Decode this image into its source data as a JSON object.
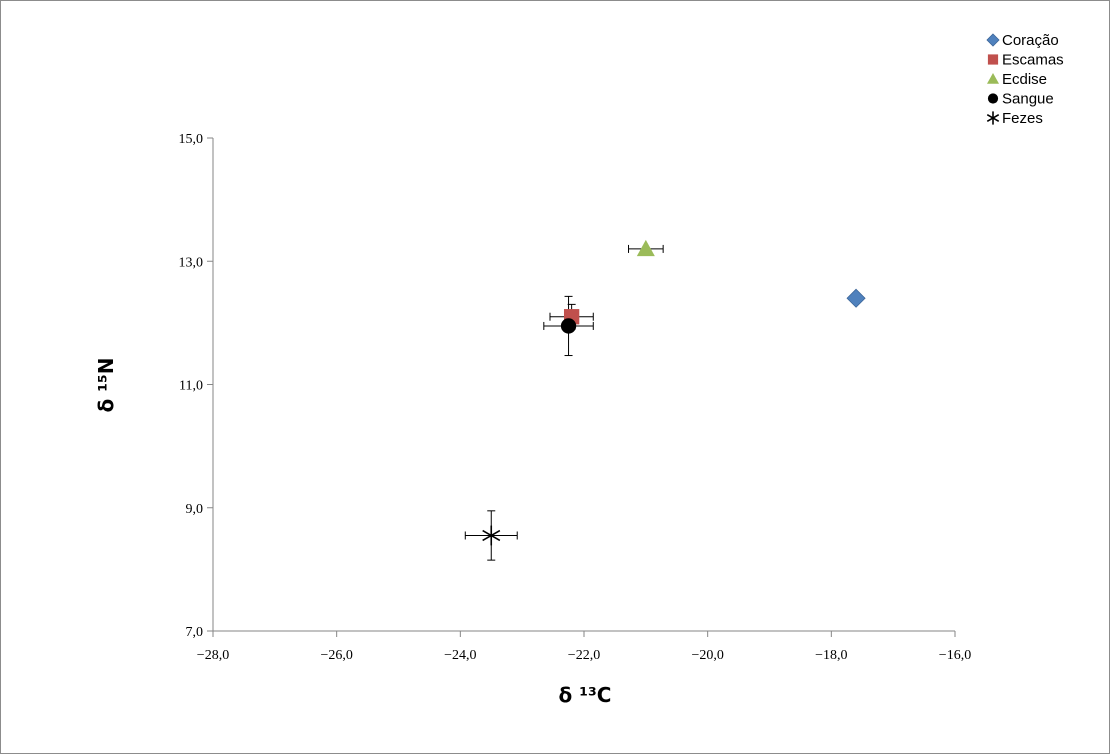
{
  "chart_data": {
    "type": "scatter",
    "title": "",
    "xlabel": "δ ¹³C",
    "ylabel": "δ ¹⁵N",
    "xlim": [
      -28.0,
      -16.0
    ],
    "ylim": [
      7.0,
      15.0
    ],
    "x_ticks": [
      -28.0,
      -26.0,
      -24.0,
      -22.0,
      -20.0,
      -18.0,
      -16.0
    ],
    "y_ticks": [
      7.0,
      9.0,
      11.0,
      13.0,
      15.0
    ],
    "x_tick_labels": [
      "−28,0",
      "−26,0",
      "−24,0",
      "−22,0",
      "−20,0",
      "−18,0",
      "−16,0"
    ],
    "y_tick_labels": [
      "7,0",
      "9,0",
      "11,0",
      "13,0",
      "15,0"
    ],
    "grid": false,
    "legend_position": "top-right",
    "series": [
      {
        "name": "Coração",
        "marker": "diamond",
        "color": "#4f81bd",
        "x": -17.6,
        "y": 12.4,
        "x_err": null,
        "y_err": null
      },
      {
        "name": "Escamas",
        "marker": "square",
        "color": "#c0504d",
        "x": -22.2,
        "y": 12.1,
        "x_err": 0.35,
        "y_err": 0.2
      },
      {
        "name": "Ecdise",
        "marker": "triangle",
        "color": "#9bbb59",
        "x": -21.0,
        "y": 13.2,
        "x_err": 0.28,
        "y_err": null
      },
      {
        "name": "Sangue",
        "marker": "circle",
        "color": "#000000",
        "x": -22.25,
        "y": 11.95,
        "x_err": 0.4,
        "y_err": 0.48
      },
      {
        "name": "Fezes",
        "marker": "star",
        "color": "#000000",
        "x": -23.5,
        "y": 8.55,
        "x_err": 0.42,
        "y_err": 0.4
      }
    ]
  }
}
